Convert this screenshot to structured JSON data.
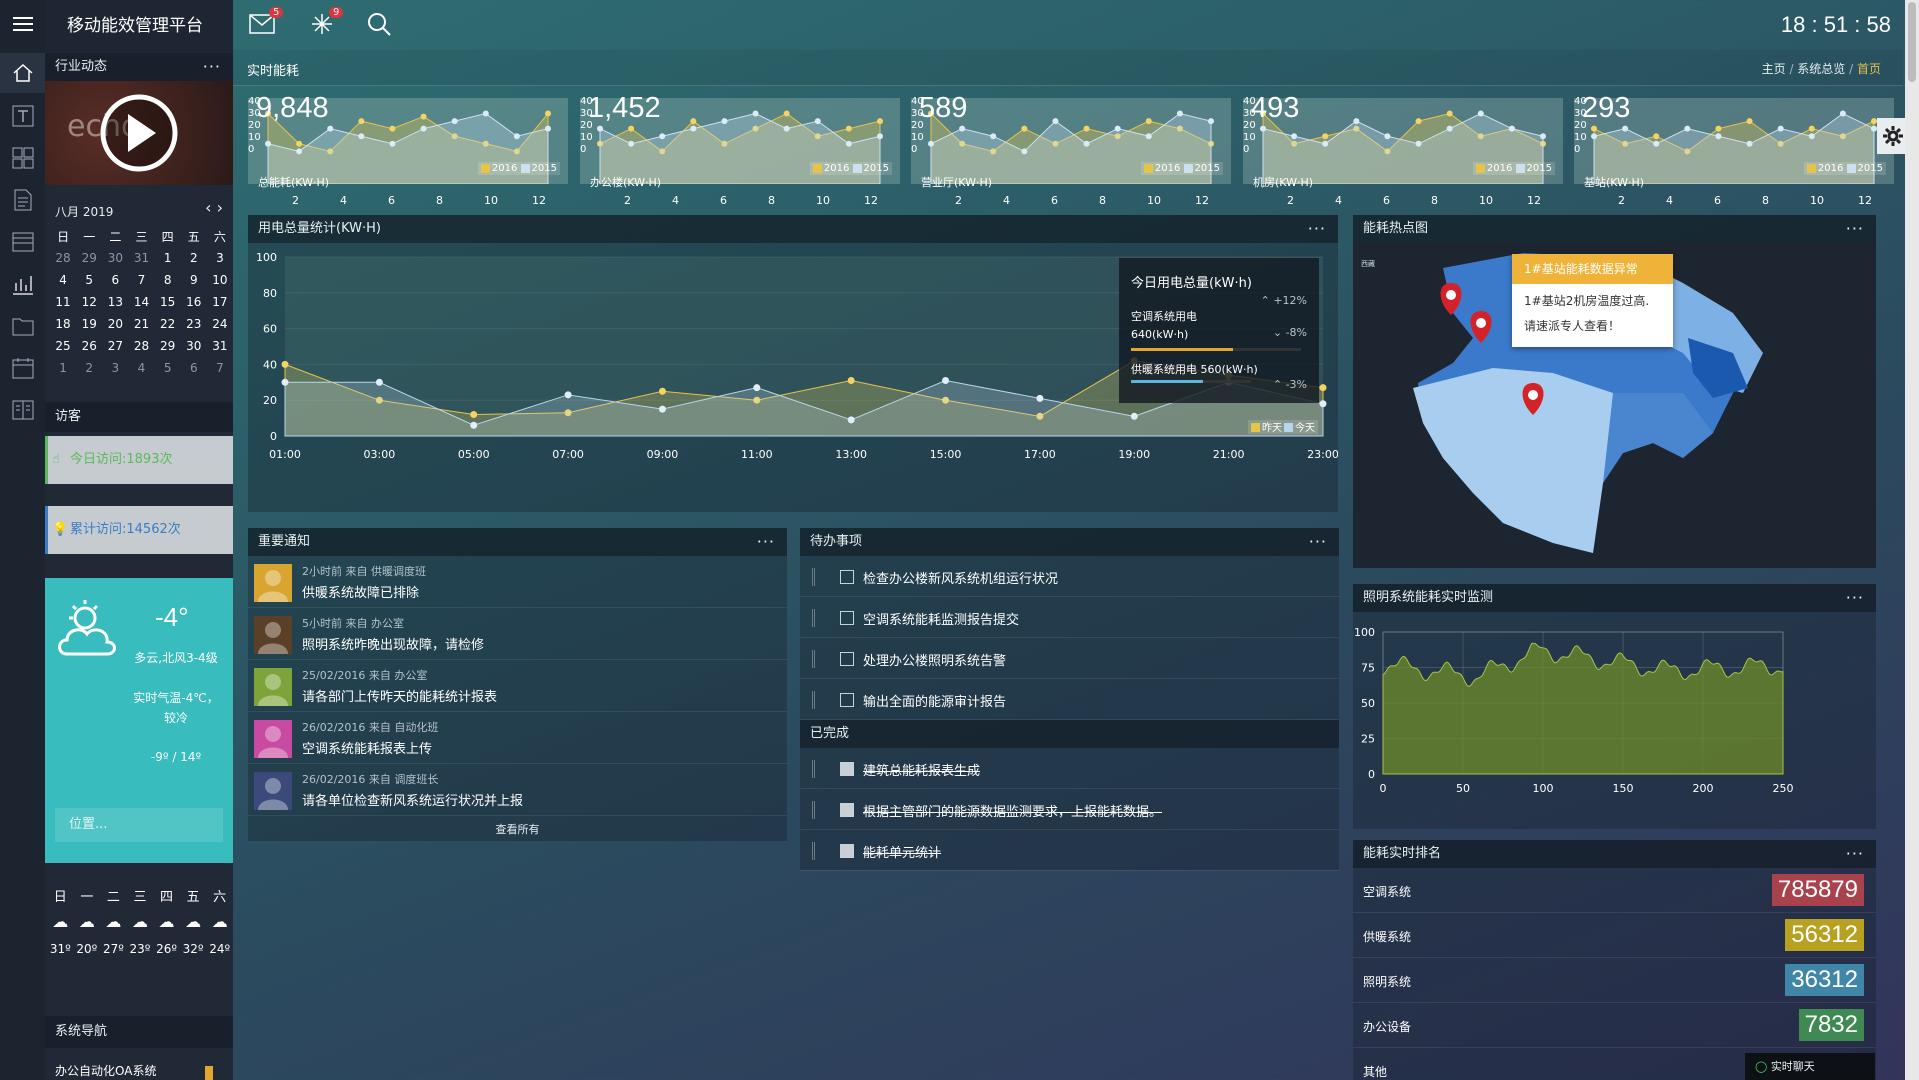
{
  "app": {
    "title": "移动能效管理平台",
    "clock": "18 : 51 : 58",
    "mail_badge": "5",
    "alert_badge": "9"
  },
  "breadcrumb": {
    "section": "实时能耗",
    "items": [
      "主页",
      "系统总览",
      "首页"
    ]
  },
  "sidebar": {
    "industry_title": "行业动态",
    "calendar": {
      "title": "八月 2019",
      "weekdays": [
        "日",
        "一",
        "二",
        "三",
        "四",
        "五",
        "六"
      ],
      "weeks": [
        [
          "28",
          "29",
          "30",
          "31",
          "1",
          "2",
          "3"
        ],
        [
          "4",
          "5",
          "6",
          "7",
          "8",
          "9",
          "10"
        ],
        [
          "11",
          "12",
          "13",
          "14",
          "15",
          "16",
          "17"
        ],
        [
          "18",
          "19",
          "20",
          "21",
          "22",
          "23",
          "24"
        ],
        [
          "25",
          "26",
          "27",
          "28",
          "29",
          "30",
          "31"
        ],
        [
          "1",
          "2",
          "3",
          "4",
          "5",
          "6",
          "7"
        ]
      ]
    },
    "visitors_title": "访客",
    "today_visits": "今日访问:1893次",
    "total_visits": "累计访问:14562次",
    "weather": {
      "temp": "-4°",
      "desc": "多云,北风3-4级",
      "feel": "实时气温-4℃，较冷",
      "range": "-9º / 14º",
      "location_placeholder": "位置..."
    },
    "forecast": {
      "days": [
        "日",
        "一",
        "二",
        "三",
        "四",
        "五",
        "六"
      ],
      "temps": [
        "31º",
        "20º",
        "27º",
        "23º",
        "26º",
        "32º",
        "24º"
      ]
    },
    "nav_title": "系统导航",
    "nav_item": "办公自动化OA系统"
  },
  "kpis": [
    {
      "value": "9,848",
      "label": "总能耗(KW·H)",
      "a": [
        40,
        20,
        15,
        35,
        30,
        38,
        25,
        20,
        15,
        40
      ],
      "b": [
        20,
        15,
        30,
        25,
        20,
        30,
        35,
        40,
        25,
        30
      ]
    },
    {
      "value": "1,452",
      "label": "办公楼(KW·H)",
      "a": [
        20,
        30,
        15,
        35,
        20,
        30,
        40,
        25,
        30,
        35
      ],
      "b": [
        30,
        20,
        25,
        30,
        35,
        40,
        30,
        35,
        20,
        25
      ]
    },
    {
      "value": "589",
      "label": "营业厅(KW·H)",
      "a": [
        40,
        20,
        15,
        30,
        20,
        30,
        25,
        35,
        30,
        20
      ],
      "b": [
        20,
        30,
        25,
        15,
        35,
        20,
        30,
        25,
        40,
        35
      ]
    },
    {
      "value": "493",
      "label": "机房(KW·H)",
      "a": [
        40,
        20,
        25,
        30,
        15,
        35,
        40,
        25,
        30,
        20
      ],
      "b": [
        30,
        25,
        20,
        35,
        25,
        20,
        30,
        40,
        30,
        25
      ]
    },
    {
      "value": "293",
      "label": "基站(KW·H)",
      "a": [
        30,
        20,
        25,
        15,
        30,
        35,
        20,
        30,
        25,
        35
      ],
      "b": [
        25,
        30,
        20,
        30,
        25,
        20,
        30,
        25,
        40,
        30
      ]
    }
  ],
  "kpi_xticks": [
    "2",
    "4",
    "6",
    "8",
    "10",
    "12"
  ],
  "kpi_yticks": [
    "40",
    "30",
    "20",
    "10",
    "0"
  ],
  "kpi_legend": [
    "2016",
    "2015"
  ],
  "power_chart": {
    "title": "用电总量统计(KW·H)",
    "chart_data": {
      "type": "area",
      "x": [
        "01:00",
        "03:00",
        "05:00",
        "07:00",
        "09:00",
        "11:00",
        "13:00",
        "15:00",
        "17:00",
        "19:00",
        "21:00",
        "23:00"
      ],
      "series": [
        {
          "name": "昨天",
          "values": [
            40,
            20,
            12,
            13,
            25,
            20,
            31,
            20,
            11,
            42,
            34,
            27
          ]
        },
        {
          "name": "今天",
          "values": [
            30,
            30,
            6,
            23,
            15,
            27,
            9,
            31,
            21,
            11,
            30,
            18
          ]
        }
      ],
      "ylim": [
        0,
        100
      ],
      "yticks": [
        "100",
        "80",
        "60",
        "40",
        "20",
        "0"
      ]
    },
    "summary_title": "今日用电总量(kW·h)",
    "summary_pct": "+12%",
    "ac_label": "空调系统用电",
    "ac_value": "640(kW·h)",
    "ac_pct": "-8%",
    "heat_label": "供暖系统用电 560(kW·h)",
    "heat_pct": "-3%",
    "colors": {
      "yesterday": "#e8c34a",
      "today": "#b8d4ee"
    }
  },
  "heatmap": {
    "title": "能耗热点图",
    "tip_title": "1#基站能耗数据异常",
    "tip_line1": "1#基站2机房温度过高.",
    "tip_line2": "请速派专人查看！",
    "corner": "西藏"
  },
  "notices": {
    "title": "重要通知",
    "more": "查看所有",
    "items": [
      {
        "meta": "2小时前 来自 供暖调度班",
        "text": "供暖系统故障已排除",
        "color": "#d9a531"
      },
      {
        "meta": "5小时前 来自 办公室",
        "text": "照明系统昨晚出现故障，请检修",
        "color": "#5b4028"
      },
      {
        "meta": "25/02/2016 来自 办公室",
        "text": "请各部门上传昨天的能耗统计报表",
        "color": "#7da43a"
      },
      {
        "meta": "26/02/2016 来自 自动化班",
        "text": "空调系统能耗报表上传",
        "color": "#c94aa2"
      },
      {
        "meta": "26/02/2016 来自 调度班长",
        "text": "请各单位检查新风系统运行状况并上报",
        "color": "#3b4a7a"
      }
    ]
  },
  "todos": {
    "title": "待办事项",
    "done_title": "已完成",
    "pending": [
      "检查办公楼新风系统机组运行状况",
      "空调系统能耗监测报告提交",
      "处理办公楼照明系统告警",
      "输出全面的能源审计报告"
    ],
    "done": [
      "建筑总能耗报表生成",
      "根据主管部门的能源数据监测要求，上报能耗数据。",
      "能耗单元统计"
    ]
  },
  "lighting": {
    "title": "照明系统能耗实时监测",
    "xticks": [
      "0",
      "50",
      "100",
      "150",
      "200",
      "250"
    ],
    "yticks": [
      "100",
      "75",
      "50",
      "25",
      "0"
    ]
  },
  "ranking": {
    "title": "能耗实时排名",
    "chat": "实时聊天",
    "items": [
      {
        "name": "空调系统",
        "value": "785879",
        "color": "#a8434e"
      },
      {
        "name": "供暖系统",
        "value": "56312",
        "color": "#b8a021"
      },
      {
        "name": "照明系统",
        "value": "36312",
        "color": "#3f86a8"
      },
      {
        "name": "办公设备",
        "value": "7832",
        "color": "#3e8a52"
      },
      {
        "name": "其他",
        "value": "",
        "color": "#2a3038"
      }
    ]
  }
}
